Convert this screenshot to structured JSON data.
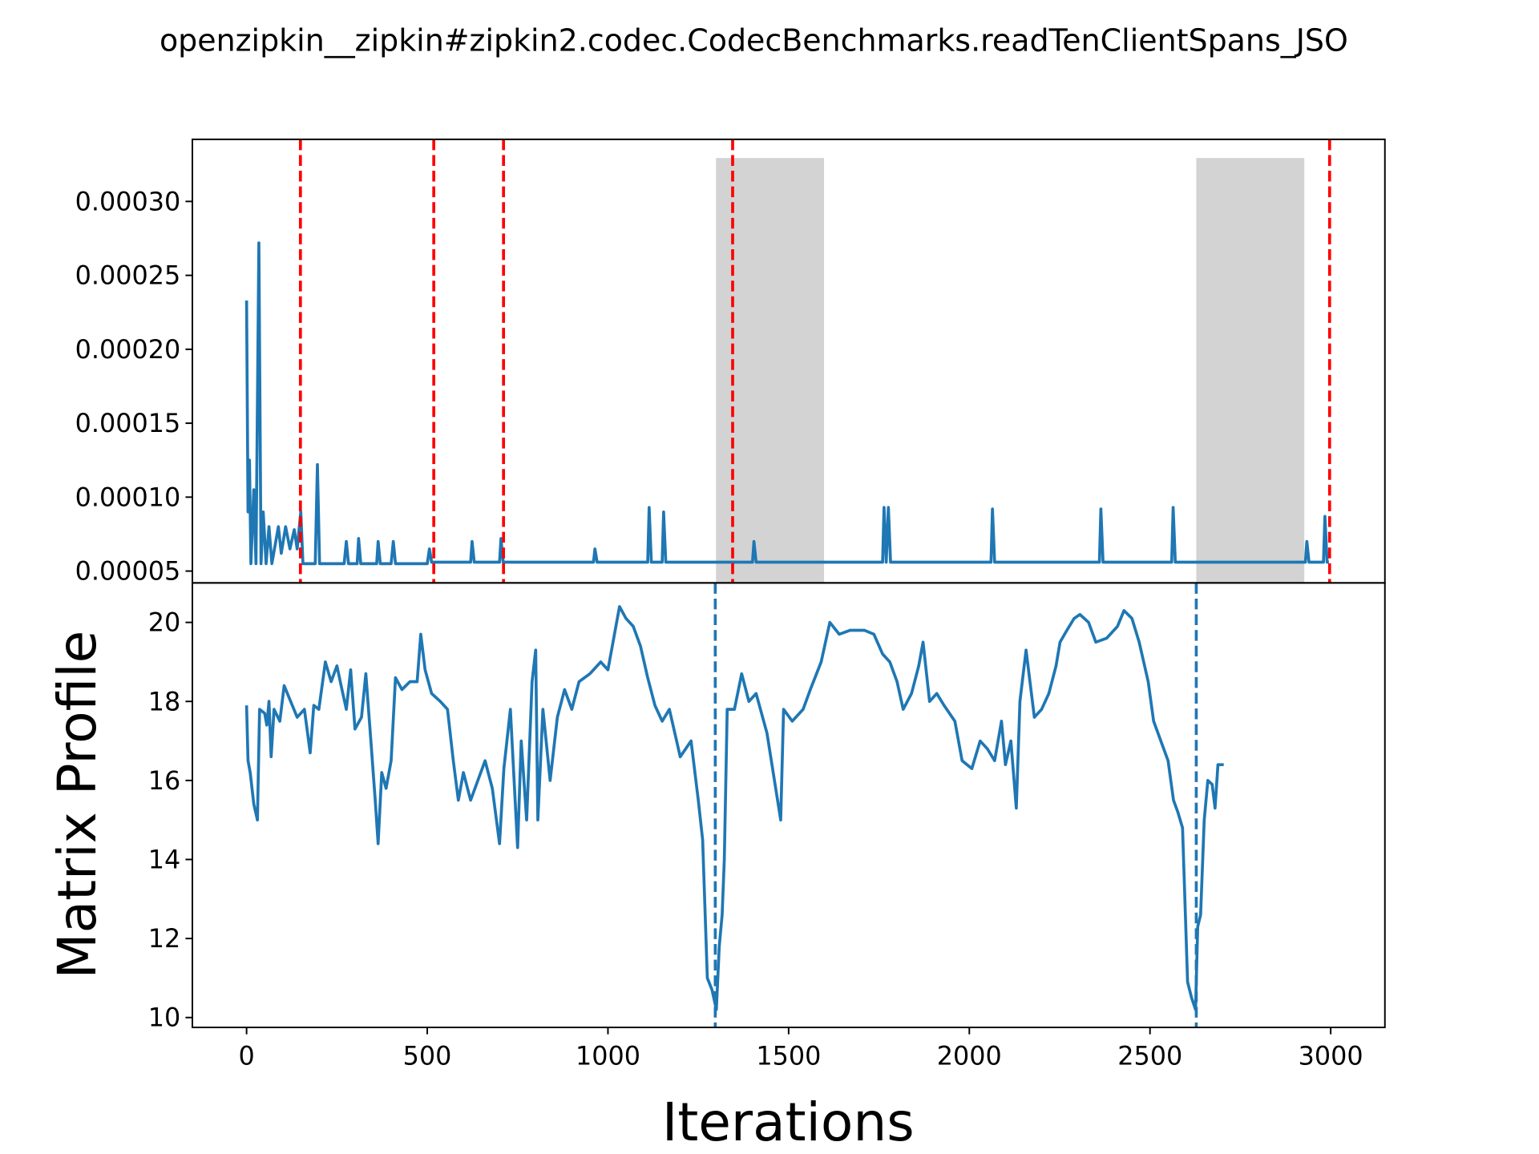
{
  "chart_data": [
    {
      "type": "line",
      "title": "openzipkin__zipkin#zipkin2.codec.CodecBenchmarks.readTenClientSpans_JSO",
      "color": "#1f77b4",
      "x": [
        0,
        4,
        8,
        12,
        20,
        26,
        34,
        40,
        46,
        54,
        62,
        70,
        88,
        96,
        108,
        120,
        132,
        140,
        150,
        156,
        190,
        196,
        202,
        270,
        276,
        282,
        306,
        310,
        316,
        360,
        364,
        370,
        400,
        406,
        412,
        500,
        506,
        512,
        620,
        624,
        630,
        700,
        704,
        710,
        960,
        964,
        970,
        1110,
        1114,
        1120,
        1150,
        1154,
        1160,
        1400,
        1404,
        1410,
        1760,
        1764,
        1770,
        1776,
        1782,
        2060,
        2064,
        2070,
        2360,
        2364,
        2370,
        2560,
        2564,
        2570,
        2930,
        2934,
        2940,
        2980,
        2984,
        2990,
        2995
      ],
      "values": [
        0.000233,
        9e-05,
        0.000125,
        5.5e-05,
        0.000105,
        5.5e-05,
        0.000272,
        5.5e-05,
        9e-05,
        5.5e-05,
        8e-05,
        5.5e-05,
        8e-05,
        6.2e-05,
        8e-05,
        6.5e-05,
        7.8e-05,
        6.5e-05,
        9e-05,
        5.5e-05,
        5.5e-05,
        0.000122,
        5.5e-05,
        5.5e-05,
        7e-05,
        5.5e-05,
        5.5e-05,
        7.2e-05,
        5.5e-05,
        5.5e-05,
        7e-05,
        5.5e-05,
        5.5e-05,
        7e-05,
        5.5e-05,
        5.5e-05,
        6.5e-05,
        5.6e-05,
        5.6e-05,
        7e-05,
        5.6e-05,
        5.6e-05,
        7.2e-05,
        5.6e-05,
        5.6e-05,
        6.5e-05,
        5.6e-05,
        5.6e-05,
        9.3e-05,
        5.6e-05,
        5.6e-05,
        9e-05,
        5.6e-05,
        5.6e-05,
        7e-05,
        5.6e-05,
        5.6e-05,
        9.3e-05,
        5.6e-05,
        9.3e-05,
        5.6e-05,
        5.6e-05,
        9.2e-05,
        5.6e-05,
        5.6e-05,
        9.2e-05,
        5.6e-05,
        5.6e-05,
        9.3e-05,
        5.6e-05,
        5.6e-05,
        7e-05,
        5.6e-05,
        5.6e-05,
        8.7e-05,
        5.6e-05,
        5.6e-05
      ],
      "vlines": [
        149,
        518,
        711,
        1345,
        2997
      ],
      "vline_color": "#ff0000",
      "spans": [
        [
          1299,
          1598
        ],
        [
          2628,
          2927
        ]
      ],
      "span_color": "#d3d3d3",
      "xlim": [
        -150,
        3150
      ],
      "ylim": [
        4.2e-05,
        0.000342
      ],
      "yticks": [
        {
          "value": 5e-05,
          "label": "0.00005"
        },
        {
          "value": 0.0001,
          "label": "0.00010"
        },
        {
          "value": 0.00015,
          "label": "0.00015"
        },
        {
          "value": 0.0002,
          "label": "0.00020"
        },
        {
          "value": 0.00025,
          "label": "0.00025"
        },
        {
          "value": 0.0003,
          "label": "0.00030"
        }
      ]
    },
    {
      "type": "line",
      "xlabel": "Iterations",
      "ylabel": "Matrix Profile",
      "color": "#1f77b4",
      "x": [
        0,
        4,
        10,
        20,
        30,
        36,
        50,
        56,
        62,
        68,
        76,
        92,
        104,
        122,
        140,
        160,
        176,
        186,
        200,
        218,
        234,
        250,
        264,
        276,
        288,
        300,
        318,
        330,
        344,
        356,
        364,
        374,
        386,
        400,
        412,
        430,
        452,
        472,
        482,
        494,
        512,
        536,
        556,
        572,
        586,
        600,
        620,
        640,
        660,
        680,
        700,
        712,
        730,
        750,
        760,
        775,
        790,
        800,
        806,
        820,
        840,
        860,
        880,
        900,
        920,
        950,
        980,
        1000,
        1020,
        1032,
        1050,
        1070,
        1090,
        1110,
        1130,
        1150,
        1170,
        1200,
        1230,
        1250,
        1262,
        1275,
        1288,
        1300,
        1308,
        1316,
        1322,
        1330,
        1350,
        1370,
        1390,
        1410,
        1440,
        1478,
        1486,
        1510,
        1540,
        1560,
        1590,
        1614,
        1640,
        1670,
        1710,
        1736,
        1760,
        1780,
        1800,
        1817,
        1840,
        1860,
        1872,
        1890,
        1910,
        1930,
        1960,
        1980,
        2007,
        2030,
        2050,
        2070,
        2089,
        2100,
        2115,
        2130,
        2140,
        2157,
        2180,
        2200,
        2220,
        2240,
        2251,
        2270,
        2290,
        2306,
        2330,
        2350,
        2380,
        2410,
        2428,
        2450,
        2470,
        2495,
        2510,
        2530,
        2550,
        2565,
        2577,
        2590,
        2604,
        2615,
        2626,
        2632,
        2640,
        2650,
        2660,
        2672,
        2680,
        2688,
        2704
      ],
      "values": [
        17.9,
        16.5,
        16.2,
        15.4,
        15.0,
        17.8,
        17.7,
        17.4,
        18.0,
        16.6,
        17.8,
        17.5,
        18.4,
        18.0,
        17.6,
        17.8,
        16.7,
        17.9,
        17.8,
        19.0,
        18.5,
        18.9,
        18.3,
        17.8,
        18.8,
        17.3,
        17.6,
        18.7,
        17.0,
        15.5,
        14.4,
        16.2,
        15.8,
        16.5,
        18.6,
        18.3,
        18.5,
        18.5,
        19.7,
        18.8,
        18.2,
        18.0,
        17.8,
        16.5,
        15.5,
        16.2,
        15.5,
        16.0,
        16.5,
        15.8,
        14.4,
        16.3,
        17.8,
        14.3,
        17.0,
        15.0,
        18.5,
        19.3,
        15.0,
        17.8,
        16.0,
        17.6,
        18.3,
        17.8,
        18.5,
        18.7,
        19.0,
        18.8,
        19.8,
        20.4,
        20.1,
        19.9,
        19.4,
        18.6,
        17.9,
        17.5,
        17.8,
        16.6,
        17.0,
        15.5,
        14.5,
        11.0,
        10.7,
        10.2,
        11.8,
        12.6,
        14.0,
        17.8,
        17.8,
        18.7,
        18.0,
        18.2,
        17.2,
        15.0,
        17.8,
        17.5,
        17.8,
        18.3,
        19.0,
        20.0,
        19.7,
        19.8,
        19.8,
        19.7,
        19.2,
        19.0,
        18.5,
        17.8,
        18.2,
        18.9,
        19.5,
        18.0,
        18.2,
        17.9,
        17.5,
        16.5,
        16.3,
        17.0,
        16.8,
        16.5,
        17.5,
        16.4,
        17.0,
        15.3,
        18.0,
        19.3,
        17.6,
        17.8,
        18.2,
        18.9,
        19.5,
        19.8,
        20.1,
        20.2,
        20.0,
        19.5,
        19.6,
        19.9,
        20.3,
        20.1,
        19.5,
        18.5,
        17.5,
        17.0,
        16.5,
        15.5,
        15.2,
        14.8,
        10.9,
        10.5,
        10.2,
        12.3,
        12.6,
        15.0,
        16.0,
        15.9,
        15.3,
        16.4,
        16.4
      ],
      "vlines": [
        1297,
        2628
      ],
      "vline_color": "#1f77b4",
      "xlim": [
        -150,
        3150
      ],
      "xticks": [
        0,
        500,
        1000,
        1500,
        2000,
        2500,
        3000
      ],
      "ylim": [
        9.75,
        21.0
      ],
      "yticks": [
        10,
        12,
        14,
        16,
        18,
        20
      ]
    }
  ]
}
